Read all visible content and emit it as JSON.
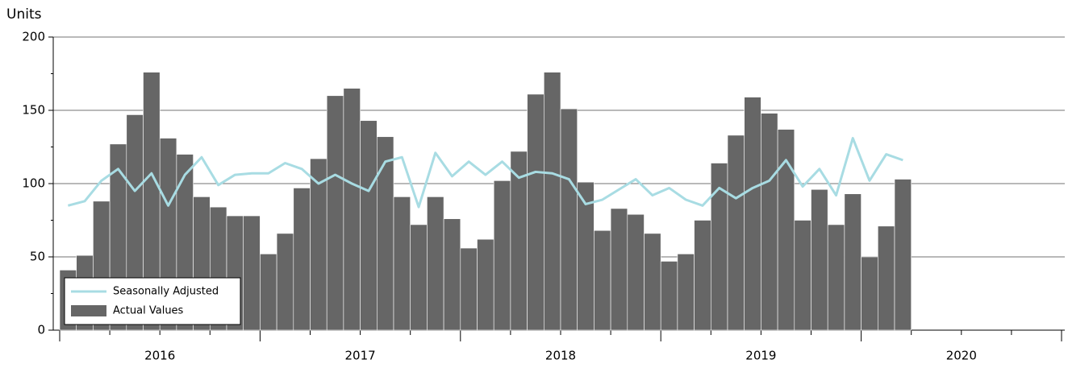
{
  "chart_data": {
    "type": "bar_line",
    "y_label": "Units",
    "categories": [
      null,
      null,
      null,
      null,
      null,
      null,
      null,
      null,
      null,
      null,
      null,
      null,
      null,
      null,
      null,
      null,
      null,
      null,
      null,
      null,
      null,
      null,
      null,
      null,
      null,
      null,
      null,
      null,
      null,
      null,
      null,
      null,
      null,
      null,
      null,
      null,
      null,
      null,
      null,
      null,
      null,
      null,
      null,
      null,
      null,
      null,
      null,
      null,
      null,
      null,
      null,
      null,
      null,
      null,
      null,
      null,
      null,
      null,
      null,
      null
    ],
    "year_labels": [
      "2016",
      "2017",
      "2018",
      "2019",
      "2020"
    ],
    "series": [
      {
        "name": "Seasonally Adjusted",
        "type": "line",
        "color": "#a8dce3",
        "values": [
          85,
          88,
          102,
          110,
          95,
          107,
          85,
          106,
          118,
          99,
          106,
          107,
          107,
          114,
          110,
          100,
          106,
          100,
          95,
          115,
          118,
          84,
          121,
          105,
          115,
          106,
          115,
          104,
          108,
          107,
          103,
          86,
          89,
          96,
          103,
          92,
          97,
          89,
          85,
          97,
          90,
          97,
          102,
          116,
          98,
          110,
          92,
          131,
          102,
          120,
          116,
          null,
          null,
          null,
          null,
          null,
          null,
          null,
          null,
          null
        ]
      },
      {
        "name": "Actual Values",
        "type": "bar",
        "color": "#666666",
        "values": [
          41,
          51,
          88,
          127,
          147,
          176,
          131,
          120,
          91,
          84,
          78,
          78,
          52,
          66,
          97,
          117,
          160,
          165,
          143,
          132,
          91,
          72,
          91,
          76,
          56,
          62,
          102,
          122,
          161,
          176,
          151,
          101,
          68,
          83,
          79,
          66,
          47,
          52,
          75,
          114,
          133,
          159,
          148,
          137,
          75,
          96,
          72,
          93,
          50,
          71,
          103,
          null,
          null,
          null,
          null,
          null,
          null,
          null,
          null,
          null
        ]
      }
    ],
    "ylim": [
      0,
      200
    ],
    "yticks": [
      0,
      50,
      100,
      150,
      200
    ],
    "grid": true,
    "legend": "lower left"
  }
}
